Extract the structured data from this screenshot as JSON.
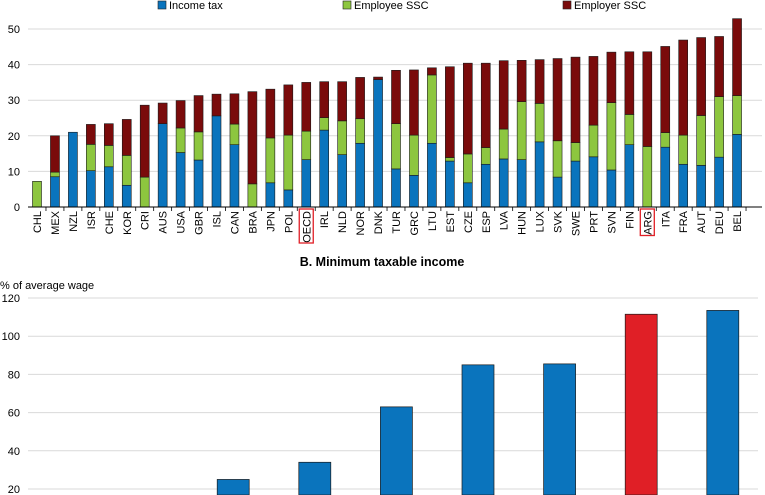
{
  "colors": {
    "income_tax": "#0a74bd",
    "employee_ssc": "#8dc63f",
    "employer_ssc": "#7a0b0b",
    "highlight": "#e01f26",
    "grid": "#d9d9d9"
  },
  "chart_data": [
    {
      "type": "bar",
      "stacked": true,
      "title": "",
      "ylabel": "",
      "ylim": [
        0,
        50
      ],
      "yticks": [
        0,
        10,
        20,
        30,
        40,
        50
      ],
      "grid": true,
      "legend_placement": "top",
      "highlighted_categories": [
        "OECD",
        "ARG"
      ],
      "categories": [
        "CHL",
        "MEX",
        "NZL",
        "ISR",
        "CHE",
        "KOR",
        "CRI",
        "AUS",
        "USA",
        "GBR",
        "ISL",
        "CAN",
        "BRA",
        "JPN",
        "POL",
        "OECD",
        "IRL",
        "NLD",
        "NOR",
        "DNK",
        "TUR",
        "GRC",
        "LTU",
        "EST",
        "CZE",
        "ESP",
        "LVA",
        "HUN",
        "LUX",
        "SVK",
        "SWE",
        "PRT",
        "SVN",
        "FIN",
        "ARG",
        "ITA",
        "FRA",
        "AUT",
        "DEU",
        "BEL"
      ],
      "series": [
        {
          "name": "Income tax",
          "values": [
            0,
            8.5,
            21,
            10.2,
            11.3,
            6.1,
            0,
            23.4,
            15.3,
            13.2,
            25.6,
            17.5,
            0,
            6.8,
            4.8,
            13.3,
            21.6,
            14.7,
            17.9,
            35.8,
            10.7,
            8.9,
            17.9,
            12.9,
            6.8,
            12.0,
            13.5,
            13.3,
            18.3,
            8.4,
            12.9,
            14.1,
            10.4,
            17.5,
            0,
            16.8,
            12.0,
            11.7,
            14.0,
            20.4
          ]
        },
        {
          "name": "Employee SSC",
          "values": [
            7.2,
            1.3,
            0,
            7.4,
            6.0,
            8.4,
            8.4,
            0,
            6.9,
            7.9,
            0,
            5.8,
            6.5,
            12.6,
            15.4,
            8.0,
            3.5,
            9.5,
            6.9,
            0,
            12.7,
            11.3,
            19.2,
            1.0,
            8.1,
            4.7,
            8.4,
            16.3,
            10.8,
            10.2,
            5.2,
            8.9,
            18.9,
            8.5,
            17.0,
            4.1,
            8.2,
            14.0,
            17.0,
            10.9
          ]
        },
        {
          "name": "Employer SSC",
          "values": [
            0,
            10.2,
            0,
            5.6,
            6.1,
            10.1,
            20.2,
            5.8,
            7.7,
            10.2,
            6.1,
            8.5,
            25.9,
            13.7,
            14.1,
            13.7,
            10.1,
            11.0,
            11.6,
            0.7,
            15.0,
            18.3,
            2.0,
            25.5,
            25.5,
            23.7,
            19.2,
            11.6,
            12.3,
            23.1,
            24.0,
            19.3,
            14.2,
            17.6,
            26.6,
            24.2,
            26.7,
            21.9,
            16.9,
            21.6
          ]
        }
      ]
    },
    {
      "type": "bar",
      "title": "B. Minimum taxable income",
      "ylabel": "% of average wage",
      "ylim": [
        0,
        120
      ],
      "yticks": [
        20,
        40,
        60,
        80,
        100,
        120
      ],
      "grid": true,
      "highlight_index": 7,
      "values": [
        null,
        null,
        25,
        34,
        63,
        85,
        85.5,
        111.5,
        113.5
      ]
    }
  ]
}
